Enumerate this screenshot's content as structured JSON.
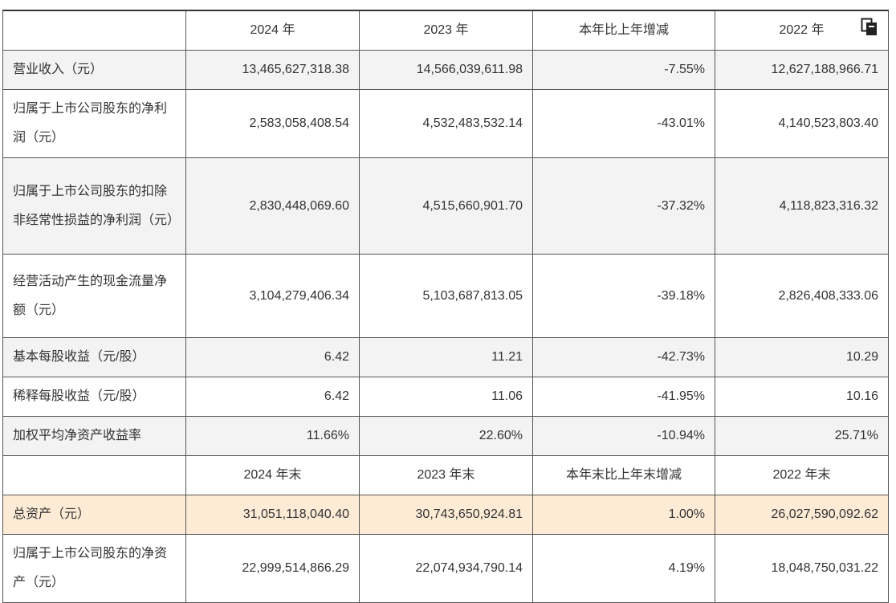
{
  "header": [
    "",
    "2024 年",
    "2023 年",
    "本年比上年增减",
    "2022 年"
  ],
  "rows": [
    {
      "label": "营业收入（元）",
      "values": [
        "13,465,627,318.38",
        "14,566,039,611.98",
        "-7.55%",
        "12,627,188,966.71"
      ]
    },
    {
      "label": "归属于上市公司股东的净利润（元）",
      "values": [
        "2,583,058,408.54",
        "4,532,483,532.14",
        "-43.01%",
        "4,140,523,803.40"
      ]
    },
    {
      "label": "归属于上市公司股东的扣除非经常性损益的净利润（元）",
      "values": [
        "2,830,448,069.60",
        "4,515,660,901.70",
        "-37.32%",
        "4,118,823,316.32"
      ]
    },
    {
      "label": "经营活动产生的现金流量净额（元）",
      "values": [
        "3,104,279,406.34",
        "5,103,687,813.05",
        "-39.18%",
        "2,826,408,333.06"
      ]
    },
    {
      "label": "基本每股收益（元/股）",
      "values": [
        "6.42",
        "11.21",
        "-42.73%",
        "10.29"
      ]
    },
    {
      "label": "稀释每股收益（元/股）",
      "values": [
        "6.42",
        "11.06",
        "-41.95%",
        "10.16"
      ]
    },
    {
      "label": "加权平均净资产收益率",
      "values": [
        "11.66%",
        "22.60%",
        "-10.94%",
        "25.71%"
      ]
    }
  ],
  "header2": [
    "",
    "2024 年末",
    "2023 年末",
    "本年末比上年末增减",
    "2022 年末"
  ],
  "rows2": [
    {
      "label": "总资产（元）",
      "values": [
        "31,051,118,040.40",
        "30,743,650,924.81",
        "1.00%",
        "26,027,590,092.62"
      ]
    },
    {
      "label": "归属于上市公司股东的净资产（元）",
      "values": [
        "22,999,514,866.29",
        "22,074,934,790.14",
        "4.19%",
        "18,048,750,031.22"
      ]
    }
  ],
  "icons": {
    "copy": "copy-icon"
  },
  "colors": {
    "highlight": "#fdebd6",
    "shade": "#f3f3f3",
    "border": "#555555"
  }
}
